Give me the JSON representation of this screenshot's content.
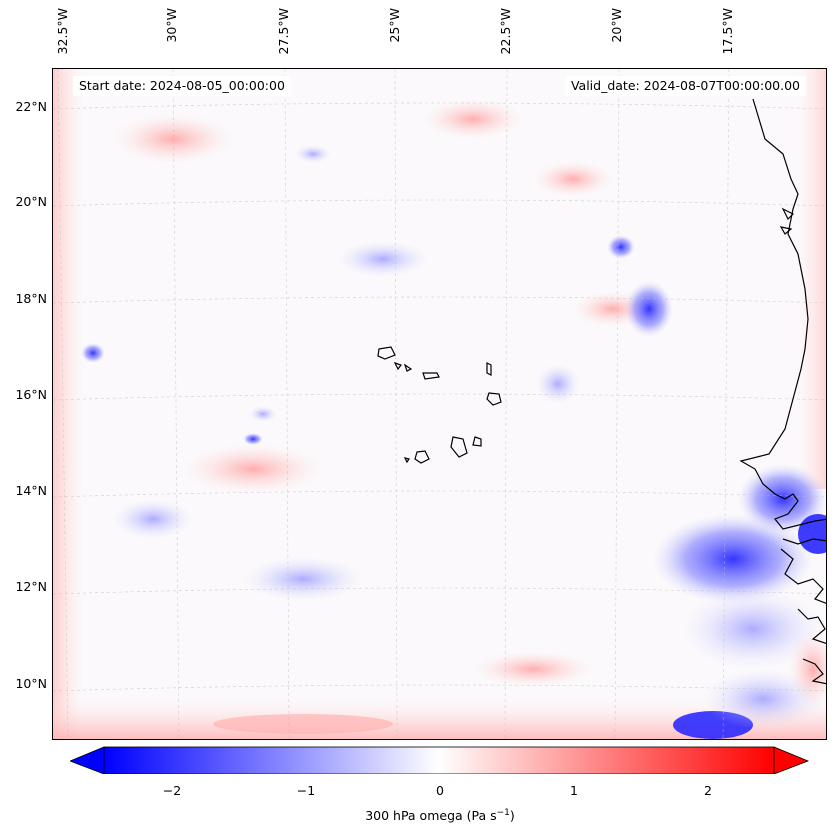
{
  "map": {
    "start_date": "Start date: 2024-08-05_00:00:00",
    "valid_date": "Valid_date: 2024-08-07T00:00:00.00",
    "lon_labels": [
      "32.5°W",
      "30°W",
      "27.5°W",
      "25°W",
      "22.5°W",
      "20°W",
      "17.5°W"
    ],
    "lat_labels": [
      "22°N",
      "20°N",
      "18°N",
      "16°N",
      "14°N",
      "12°N",
      "10°N"
    ]
  },
  "colorbar": {
    "ticks": [
      "−2",
      "−1",
      "0",
      "1",
      "2"
    ],
    "label": "300 hPa omega (Pa s",
    "label_sup": "−1",
    "label_end": ")",
    "min": -2.75,
    "max": 2.75,
    "low_color": "#0000ff",
    "mid_color": "#ffffff",
    "high_color": "#ff0000"
  }
}
